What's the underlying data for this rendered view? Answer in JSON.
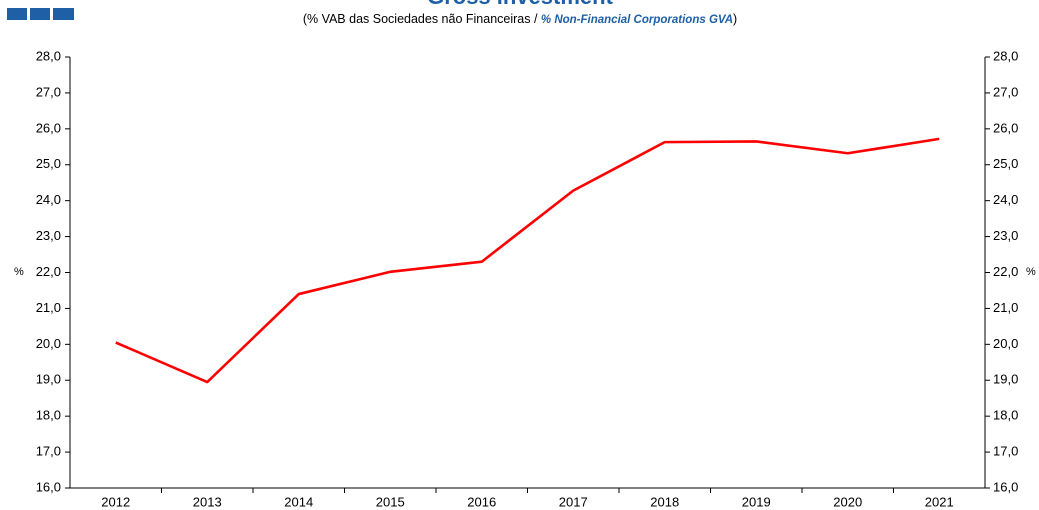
{
  "chart_data": {
    "type": "line",
    "title": "Gross investment",
    "subtitle": [
      "(% VAB das Sociedades não Financeiras / ",
      "% Non-Financial Corporations GVA",
      ")"
    ],
    "ylabel": "%",
    "y2label": "%",
    "categories": [
      "2012",
      "2013",
      "2014",
      "2015",
      "2016",
      "2017",
      "2018",
      "2019",
      "2020",
      "2021"
    ],
    "series": [
      {
        "name": "Gross investment",
        "color": "#ff0000",
        "values": [
          20.05,
          18.95,
          21.4,
          22.02,
          22.3,
          24.28,
          25.63,
          25.65,
          25.32,
          25.72
        ]
      }
    ],
    "ylim": [
      16,
      28
    ],
    "yticks": [
      {
        "value": 16,
        "label": "16,0"
      },
      {
        "value": 17,
        "label": "17,0"
      },
      {
        "value": 18,
        "label": "18,0"
      },
      {
        "value": 19,
        "label": "19,0"
      },
      {
        "value": 20,
        "label": "20,0"
      },
      {
        "value": 21,
        "label": "21,0"
      },
      {
        "value": 22,
        "label": "22,0"
      },
      {
        "value": 23,
        "label": "23,0"
      },
      {
        "value": 24,
        "label": "24,0"
      },
      {
        "value": 25,
        "label": "25,0"
      },
      {
        "value": 26,
        "label": "26,0"
      },
      {
        "value": 27,
        "label": "27,0"
      },
      {
        "value": 28,
        "label": "28,0"
      }
    ],
    "y2lim": [
      16,
      28
    ],
    "y2ticks": [
      {
        "value": 16,
        "label": "16,0"
      },
      {
        "value": 17,
        "label": "17,0"
      },
      {
        "value": 18,
        "label": "18,0"
      },
      {
        "value": 19,
        "label": "19,0"
      },
      {
        "value": 20,
        "label": "20,0"
      },
      {
        "value": 21,
        "label": "21,0"
      },
      {
        "value": 22,
        "label": "22,0"
      },
      {
        "value": 23,
        "label": "23,0"
      },
      {
        "value": 24,
        "label": "24,0"
      },
      {
        "value": 25,
        "label": "25,0"
      },
      {
        "value": 26,
        "label": "26,0"
      },
      {
        "value": 27,
        "label": "27,0"
      },
      {
        "value": 28,
        "label": "28,0"
      }
    ],
    "grid": false
  }
}
